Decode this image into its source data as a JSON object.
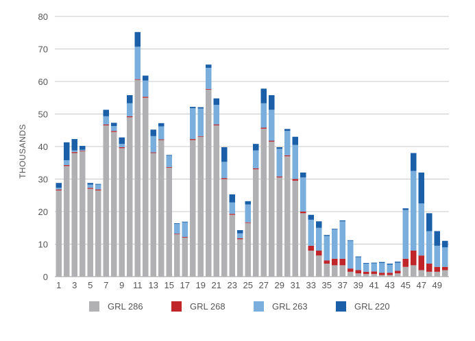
{
  "chart_data": {
    "type": "bar",
    "stacked": true,
    "ylabel": "THOUSANDS",
    "ylim": [
      0,
      80
    ],
    "yticks": [
      0,
      10,
      20,
      30,
      40,
      50,
      60,
      70,
      80
    ],
    "categories": [
      "1",
      "2",
      "3",
      "4",
      "5",
      "6",
      "7",
      "8",
      "9",
      "10",
      "11",
      "12",
      "13",
      "14",
      "15",
      "16",
      "17",
      "18",
      "19",
      "20",
      "21",
      "22",
      "23",
      "24",
      "25",
      "26",
      "27",
      "28",
      "29",
      "30",
      "31",
      "32",
      "33",
      "34",
      "35",
      "36",
      "37",
      "38",
      "39",
      "40",
      "41",
      "42",
      "43",
      "44",
      "45",
      "46",
      "47",
      "48",
      "49",
      "50"
    ],
    "x_tick_labels": [
      "1",
      "3",
      "5",
      "7",
      "9",
      "11",
      "13",
      "15",
      "17",
      "19",
      "21",
      "23",
      "25",
      "27",
      "29",
      "31",
      "33",
      "35",
      "37",
      "39",
      "41",
      "43",
      "45",
      "47",
      "49"
    ],
    "series": [
      {
        "name": "GRL 286",
        "color": "#b1b1b3",
        "values": [
          26.5,
          34,
          38,
          38.5,
          27,
          26.5,
          46.5,
          44.5,
          39.5,
          49,
          60.5,
          55,
          38,
          42,
          33.5,
          13,
          12,
          42,
          43,
          57.5,
          46.5,
          30,
          19,
          11.5,
          16.5,
          33,
          45.5,
          41.5,
          30.5,
          37,
          29.5,
          19.5,
          8,
          6.5,
          4,
          3.5,
          3.5,
          1.5,
          1,
          0.8,
          0.8,
          0.5,
          0.5,
          1,
          3,
          3.5,
          2,
          1.5,
          1.5,
          2
        ]
      },
      {
        "name": "GRL 268",
        "color": "#c0252a",
        "values": [
          0.3,
          0.3,
          0.3,
          0.2,
          0.3,
          0.3,
          0.3,
          0.3,
          0.3,
          0.3,
          0.2,
          0.3,
          0.2,
          0.2,
          0.2,
          0.2,
          0.2,
          0.3,
          0.2,
          0.2,
          0.3,
          0.3,
          0.3,
          0.3,
          0.2,
          0.3,
          0.3,
          0.3,
          0.3,
          0.3,
          0.5,
          0.5,
          1.5,
          1.5,
          1,
          2,
          2,
          1,
          1,
          0.7,
          0.8,
          0.7,
          0.7,
          0.8,
          2.5,
          4.5,
          4.5,
          2.5,
          1.5,
          1
        ]
      },
      {
        "name": "GRL 263",
        "color": "#7aaedc",
        "values": [
          0.5,
          1.5,
          0.5,
          0.3,
          1,
          1.5,
          2.5,
          1.5,
          1,
          4,
          10,
          5,
          5,
          4,
          3.5,
          3,
          4.5,
          9.5,
          8.5,
          6.5,
          6,
          5,
          3.5,
          1.5,
          5.5,
          5.5,
          7.5,
          9.5,
          8.5,
          7.5,
          10.5,
          10.5,
          8,
          7,
          7.5,
          9,
          11.5,
          8.5,
          4,
          2.5,
          2.5,
          3,
          2.5,
          2.5,
          15,
          24.5,
          16,
          10,
          6.5,
          6
        ]
      },
      {
        "name": "GRL 220",
        "color": "#1a5fa8",
        "values": [
          1.5,
          5.5,
          3.5,
          1.2,
          0.5,
          0.2,
          2,
          1,
          2,
          2.5,
          4.5,
          1.5,
          2,
          1,
          0.2,
          0.2,
          0.2,
          0.4,
          0.4,
          1,
          2,
          4.5,
          2.5,
          1,
          1,
          2,
          4.5,
          4.5,
          0.5,
          0.6,
          2.5,
          1.5,
          1.5,
          2,
          0.3,
          0.2,
          0.3,
          0.2,
          0.2,
          0.2,
          0.2,
          0.3,
          0.3,
          0.3,
          0.5,
          5.5,
          9.5,
          5.5,
          4.5,
          2
        ]
      }
    ]
  }
}
